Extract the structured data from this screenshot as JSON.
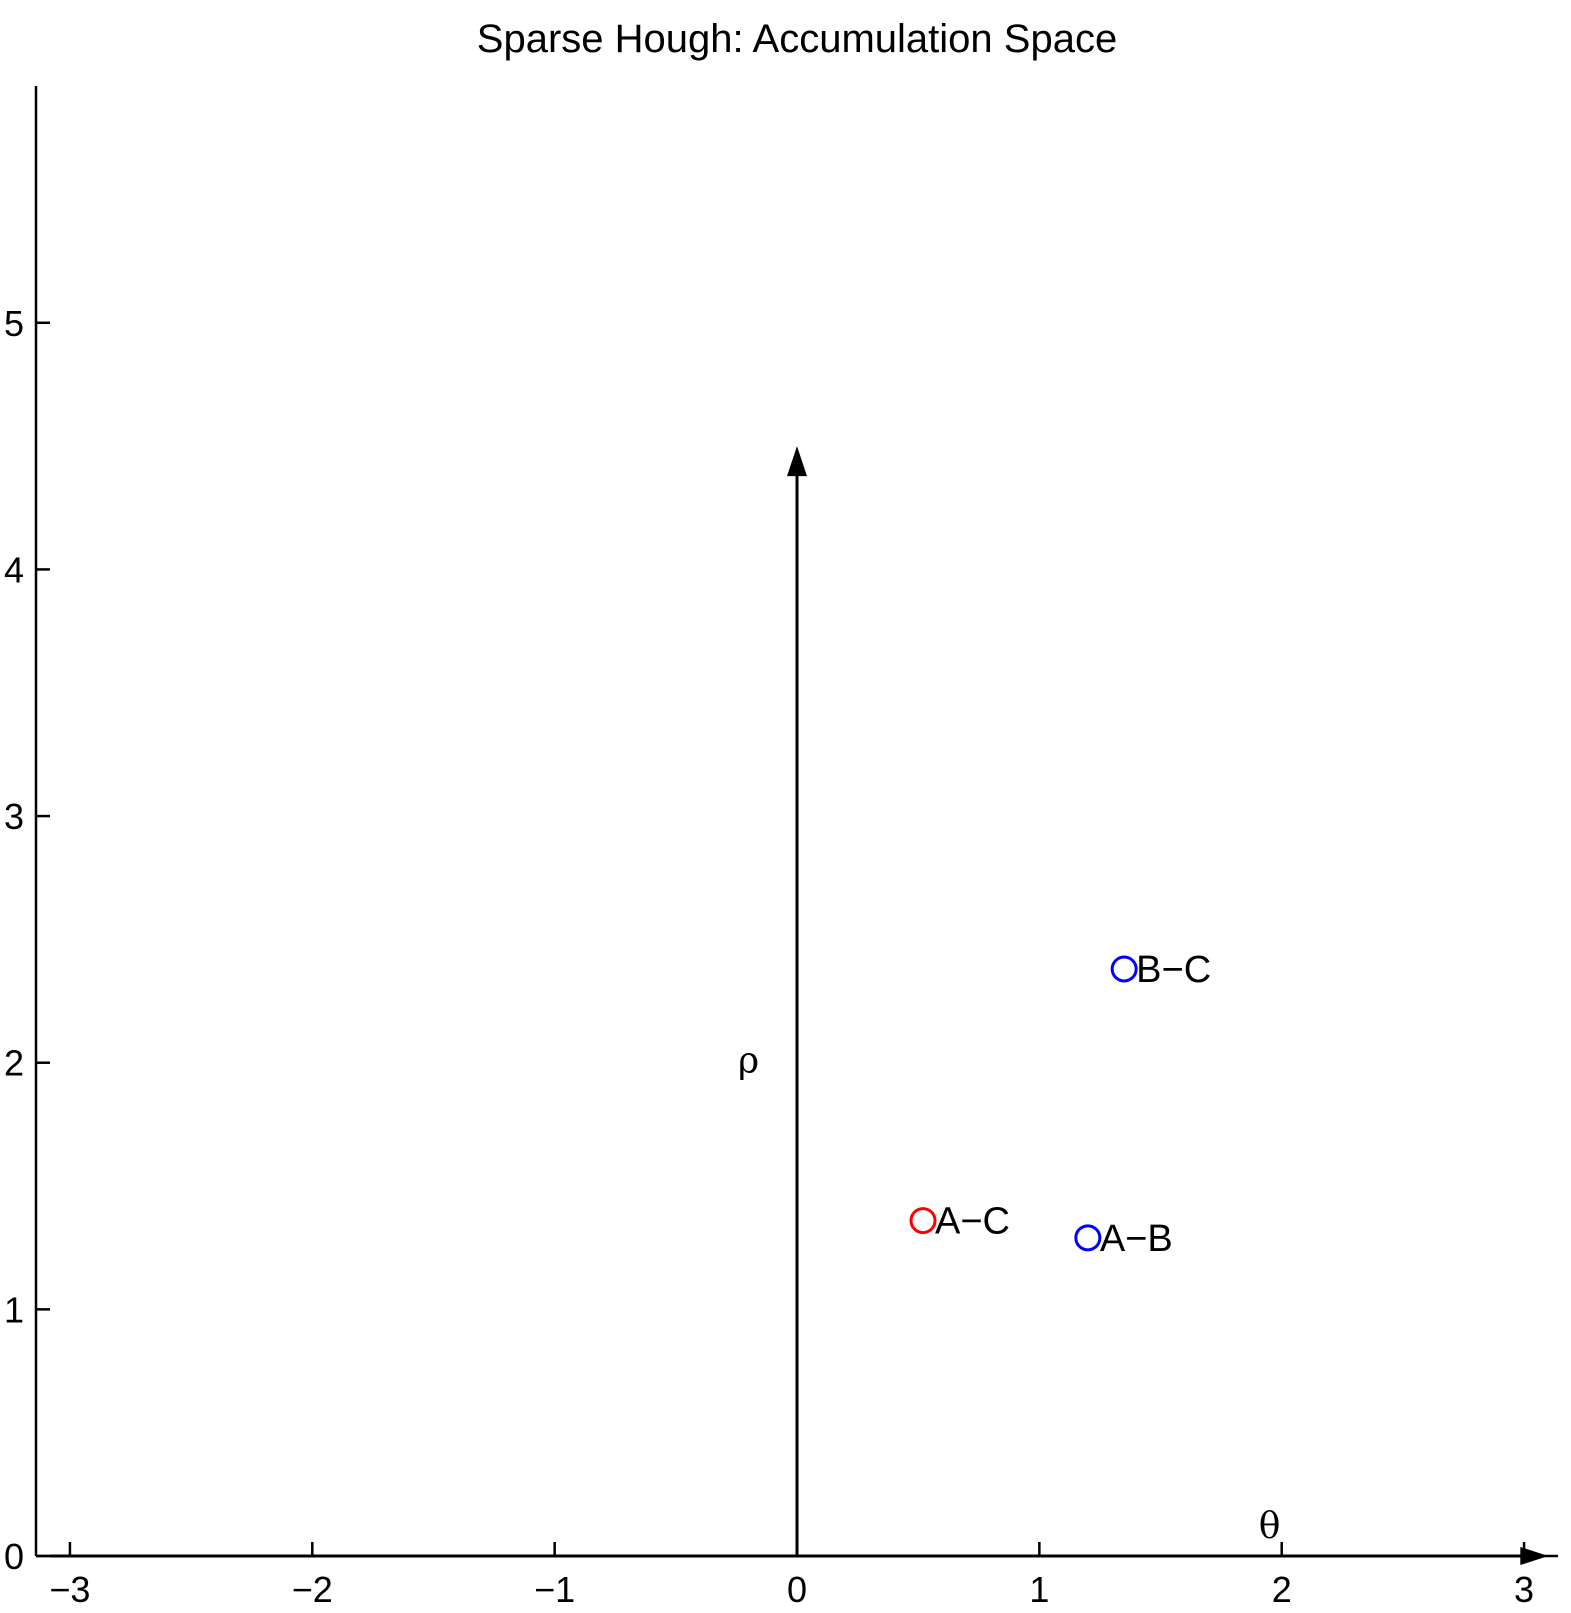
{
  "chart_data": {
    "type": "scatter",
    "title": "Sparse Hough: Accumulation Space",
    "xlabel": "",
    "ylabel": "",
    "xlim": [
      -3.14,
      3.14
    ],
    "ylim": [
      0,
      5.96
    ],
    "x_ticks": [
      "−3",
      "−2",
      "−1",
      "0",
      "1",
      "2",
      "3"
    ],
    "y_ticks": [
      "0",
      "1",
      "2",
      "3",
      "4",
      "5"
    ],
    "grid": false,
    "inner_axes": {
      "theta_label": "θ",
      "rho_label": "ρ",
      "theta_arrow_end": 3.1,
      "rho_arrow_end": 4.5
    },
    "points": [
      {
        "label": "A−C",
        "x": 0.52,
        "y": 1.36,
        "color": "#ff0000"
      },
      {
        "label": "A−B",
        "x": 1.2,
        "y": 1.29,
        "color": "#0000ff"
      },
      {
        "label": "B−C",
        "x": 1.35,
        "y": 2.38,
        "color": "#0000ff"
      }
    ]
  }
}
